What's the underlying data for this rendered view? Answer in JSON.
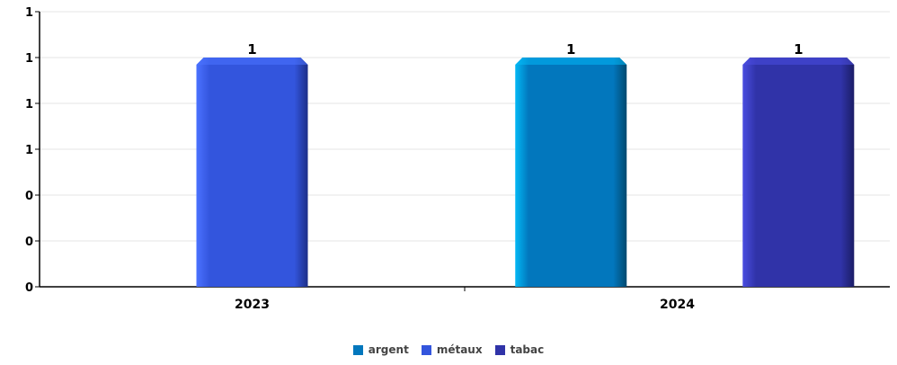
{
  "chart_data": {
    "type": "bar",
    "categories": [
      "2023",
      "2024"
    ],
    "series": [
      {
        "name": "argent",
        "color": "#0277BD",
        "light": "#03B8F5",
        "dark": "#01496F",
        "values": [
          null,
          1
        ]
      },
      {
        "name": "métaux",
        "color": "#3355DD",
        "light": "#4B72FF",
        "dark": "#1C2F88",
        "values": [
          1,
          null
        ]
      },
      {
        "name": "tabac",
        "color": "#3033A8",
        "light": "#4A4DE0",
        "dark": "#1B1D66",
        "values": [
          null,
          1
        ]
      }
    ],
    "ylim": [
      0,
      1.2
    ],
    "yticks": [
      0,
      0.2,
      0.4,
      0.6,
      0.8,
      1,
      1.2
    ],
    "ytick_labels": [
      "0",
      "0",
      "0",
      "1",
      "1",
      "1",
      "1"
    ],
    "data_labels": [
      "1",
      "1",
      "1"
    ],
    "grid": true,
    "legend_position": "bottom-center"
  }
}
